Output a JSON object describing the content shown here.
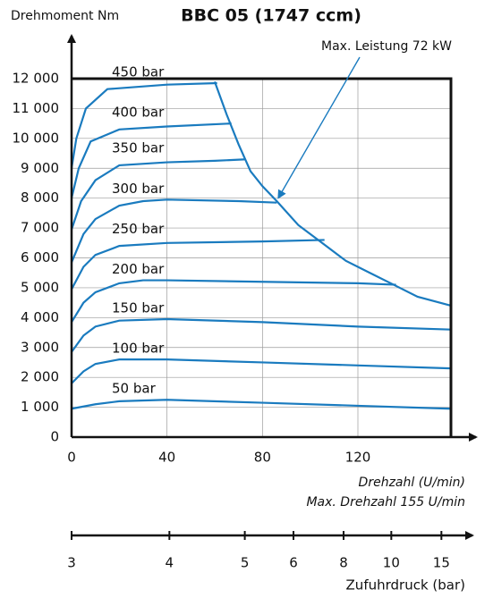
{
  "chart_data": {
    "type": "line",
    "title": "BBC 05  (1747 ccm)",
    "ylabel": "Drehmoment Nm",
    "xlabel": "Drehzahl (U/min)",
    "subtitle": "Max. Drehzahl 155 U/min",
    "x2label": "Zufuhrdruck (bar)",
    "color": "#1a7bbf",
    "grid": true,
    "xlim": [
      0,
      159
    ],
    "ylim": [
      0,
      12000
    ],
    "xticks": [
      0,
      40,
      80,
      120
    ],
    "yticks": [
      0,
      {
        "value": 1000,
        "label": "1 000"
      },
      {
        "value": 2000,
        "label": "2 000"
      },
      {
        "value": 3000,
        "label": "3 000"
      },
      {
        "value": 4000,
        "label": "4 000"
      },
      {
        "value": 5000,
        "label": "5 000"
      },
      {
        "value": 6000,
        "label": "6 000"
      },
      {
        "value": 7000,
        "label": "7 000"
      },
      {
        "value": 8000,
        "label": "8 000"
      },
      {
        "value": 9000,
        "label": "9 000"
      },
      {
        "value": 10000,
        "label": "10 000"
      },
      {
        "value": 11000,
        "label": "11 000"
      },
      {
        "value": 12000,
        "label": "12 000"
      }
    ],
    "x2ticks": [
      {
        "value": 0,
        "label": "3"
      },
      {
        "value": 41,
        "label": "4"
      },
      {
        "value": 72.6,
        "label": "5"
      },
      {
        "value": 93,
        "label": "6"
      },
      {
        "value": 114,
        "label": "8"
      },
      {
        "value": 134,
        "label": "10"
      },
      {
        "value": 155,
        "label": "15"
      }
    ],
    "series": [
      {
        "name": "50 bar",
        "x": [
          0,
          10,
          20,
          40,
          80,
          120,
          159
        ],
        "values": [
          950,
          1100,
          1200,
          1250,
          1150,
          1050,
          950
        ]
      },
      {
        "name": "100 bar",
        "x": [
          0,
          5,
          10,
          20,
          40,
          80,
          120,
          159
        ],
        "values": [
          1800,
          2200,
          2450,
          2600,
          2600,
          2500,
          2400,
          2300
        ]
      },
      {
        "name": "150 bar",
        "x": [
          0,
          5,
          10,
          20,
          40,
          80,
          120,
          159
        ],
        "values": [
          2850,
          3400,
          3700,
          3900,
          3950,
          3850,
          3700,
          3600
        ]
      },
      {
        "name": "200 bar",
        "x": [
          0,
          5,
          10,
          20,
          30,
          40,
          80,
          120,
          136
        ],
        "values": [
          3850,
          4500,
          4850,
          5150,
          5250,
          5250,
          5200,
          5150,
          5100
        ]
      },
      {
        "name": "250 bar",
        "x": [
          0,
          5,
          10,
          20,
          40,
          80,
          106
        ],
        "values": [
          4950,
          5700,
          6100,
          6400,
          6500,
          6550,
          6600
        ]
      },
      {
        "name": "300 bar",
        "x": [
          0,
          5,
          10,
          20,
          30,
          40,
          70,
          86
        ],
        "values": [
          5850,
          6800,
          7300,
          7750,
          7900,
          7950,
          7900,
          7850
        ]
      },
      {
        "name": "350 bar",
        "x": [
          0,
          4,
          10,
          20,
          40,
          60,
          73
        ],
        "values": [
          6950,
          7900,
          8600,
          9100,
          9200,
          9250,
          9300
        ]
      },
      {
        "name": "400 bar",
        "x": [
          0,
          3,
          8,
          20,
          40,
          67
        ],
        "values": [
          8000,
          9000,
          9900,
          10300,
          10400,
          10500
        ]
      },
      {
        "name": "450 bar",
        "x": [
          0,
          2,
          6,
          15,
          40,
          61
        ],
        "values": [
          9000,
          10000,
          11000,
          11650,
          11800,
          11850
        ]
      },
      {
        "name": "Max. Leistung 72 kW",
        "x": [
          60,
          65,
          70,
          75,
          80,
          86,
          95,
          105,
          115,
          125,
          135,
          145,
          159
        ],
        "values": [
          11900,
          10800,
          9800,
          8900,
          8400,
          7900,
          7100,
          6500,
          5900,
          5500,
          5100,
          4700,
          4400
        ]
      }
    ]
  }
}
